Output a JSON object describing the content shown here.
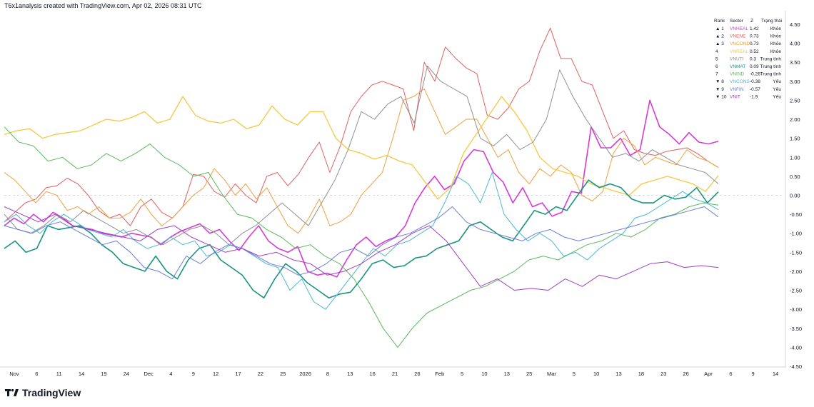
{
  "header": {
    "text": "T6x1analysis created with TradingView.com, Apr 02, 2026 08:31 UTC"
  },
  "brand": {
    "name": "TradingView"
  },
  "chart_data": {
    "type": "line",
    "ylim": [
      -4.5,
      4.8
    ],
    "y_ticks": [
      "4.50",
      "4.00",
      "3.50",
      "3.00",
      "2.50",
      "2.00",
      "1.50",
      "1.00",
      "0.50",
      "0.00",
      "-0.50",
      "-1.00",
      "-1.50",
      "-2.00",
      "-2.50",
      "-3.00",
      "-3.50",
      "-4.00",
      "-4.50"
    ],
    "x_ticks": [
      "Nov",
      "6",
      "11",
      "14",
      "19",
      "24",
      "Dec",
      "4",
      "9",
      "12",
      "17",
      "22",
      "25",
      "2026",
      "8",
      "13",
      "16",
      "21",
      "26",
      "Feb",
      "5",
      "10",
      "13",
      "25",
      "Mar",
      "5",
      "10",
      "13",
      "18",
      "23",
      "26",
      "Apr",
      "6",
      "9",
      "14"
    ],
    "legend": {
      "headers": [
        "Rank",
        "Sector",
        "Z",
        "Trạng thái"
      ],
      "rows": [
        {
          "rank": "▲ 1",
          "sector": "VNHEAL",
          "z": "1.42",
          "status": "Khỏe",
          "color": "#d63bd6"
        },
        {
          "rank": "▲ 2",
          "sector": "VNENE",
          "z": "0.73",
          "status": "Khỏe",
          "color": "#e06060"
        },
        {
          "rank": "▲ 3",
          "sector": "VNCOND",
          "z": "0.73",
          "status": "Khỏe",
          "color": "#f0a040"
        },
        {
          "rank": "4",
          "sector": "VNREAL",
          "z": "0.52",
          "status": "Khỏe",
          "color": "#f5c842"
        },
        {
          "rank": "5",
          "sector": "VNUTI",
          "z": "0.3",
          "status": "Trung tính",
          "color": "#909090"
        },
        {
          "rank": "6",
          "sector": "VNMAT",
          "z": "0.09",
          "status": "Trung tính",
          "color": "#1a9480"
        },
        {
          "rank": "7",
          "sector": "VNIND",
          "z": "-0.26",
          "status": "Trung tính",
          "color": "#5cb85c"
        },
        {
          "rank": "▼ 8",
          "sector": "VNCONS",
          "z": "-0.38",
          "status": "Yếu",
          "color": "#4cb8d6"
        },
        {
          "rank": "▼ 9",
          "sector": "VNFIN",
          "z": "-0.57",
          "status": "Yếu",
          "color": "#6a7fd6"
        },
        {
          "rank": "▼ 10",
          "sector": "VNIT",
          "z": "-1.9",
          "status": "Yếu",
          "color": "#a040c0"
        }
      ]
    },
    "series": [
      {
        "name": "VNHEAL",
        "color": "#d63bd6",
        "width": 1.6,
        "values": [
          -0.8,
          -0.6,
          -0.75,
          -0.5,
          -0.7,
          -0.45,
          -0.6,
          -0.8,
          -0.85,
          -0.9,
          -1.0,
          -1.05,
          -1.1,
          -1.0,
          -1.05,
          -1.1,
          -1.3,
          -1.1,
          -0.95,
          -0.85,
          -0.75,
          -1.0,
          -0.9,
          -1.2,
          -1.45,
          -1.1,
          -0.8,
          -1.2,
          -1.4,
          -1.5,
          -1.35,
          -2.0,
          -2.1,
          -2.05,
          -2.15,
          -1.7,
          -1.3,
          -1.1,
          -1.35,
          -1.2,
          -1.1,
          -0.8,
          -0.2,
          0.2,
          0.5,
          0.15,
          0.3,
          0.9,
          1.2,
          1.15,
          0.6,
          0.35,
          -0.2,
          0.2,
          -0.3,
          -0.2,
          -0.55,
          -0.45,
          0.1,
          0.05,
          1.8,
          1.25,
          1.25,
          1.5,
          1.05,
          1.2,
          2.5,
          1.8,
          1.6,
          1.35,
          1.65,
          1.4,
          1.35,
          1.42
        ]
      },
      {
        "name": "VNENE",
        "color": "#e06060",
        "width": 1.0,
        "values": [
          -0.7,
          -0.45,
          -0.2,
          -0.1,
          0.2,
          0.25,
          0.45,
          0.3,
          0.0,
          -0.4,
          -0.6,
          -0.5,
          -0.8,
          -0.3,
          -0.1,
          -0.45,
          -0.6,
          -0.3,
          0.55,
          0.5,
          0.1,
          -0.05,
          0.3,
          0.0,
          -0.2,
          0.5,
          0.6,
          0.25,
          0.55,
          1.0,
          1.4,
          0.6,
          1.3,
          2.2,
          2.6,
          2.9,
          3.0,
          2.9,
          2.8,
          1.7,
          3.5,
          3.0,
          3.9,
          3.6,
          3.35,
          3.2,
          2.1,
          2.0,
          2.3,
          2.8,
          3.0,
          3.8,
          4.4,
          3.6,
          3.6,
          3.0,
          2.9,
          2.2,
          1.5,
          1.7,
          1.2,
          1.1,
          1.05,
          1.15,
          1.2,
          1.25,
          1.1,
          0.9,
          0.73
        ]
      },
      {
        "name": "VNCOND",
        "color": "#f0a040",
        "width": 1.0,
        "values": [
          0.6,
          0.4,
          0.1,
          -0.2,
          0.1,
          0.0,
          -0.4,
          -0.3,
          -0.5,
          -0.3,
          -0.6,
          -0.6,
          -0.45,
          -0.1,
          -0.5,
          -0.8,
          -0.6,
          -0.3,
          0.0,
          0.2,
          0.7,
          0.4,
          0.0,
          0.3,
          -0.1,
          0.2,
          -0.3,
          -0.8,
          -1.0,
          -0.6,
          -0.1,
          -0.8,
          -0.7,
          -0.5,
          0.0,
          0.3,
          0.6,
          1.5,
          2.5,
          2.6,
          2.8,
          2.2,
          1.6,
          1.8,
          2.0,
          2.0,
          1.5,
          1.0,
          1.2,
          0.6,
          0.3,
          0.7,
          0.5,
          0.8,
          0.6,
          0.0,
          -0.15,
          0.1,
          1.1,
          1.5,
          1.3,
          0.8,
          1.0,
          0.9,
          0.8,
          1.2,
          1.0,
          0.9,
          0.73
        ]
      },
      {
        "name": "VNREAL",
        "color": "#f5c842",
        "width": 1.3,
        "values": [
          1.6,
          1.7,
          1.75,
          1.5,
          1.6,
          1.65,
          1.7,
          1.85,
          2.0,
          1.95,
          2.05,
          2.2,
          1.9,
          2.0,
          2.6,
          2.1,
          1.95,
          1.9,
          2.0,
          1.75,
          1.85,
          2.35,
          2.0,
          1.85,
          2.2,
          2.2,
          1.5,
          1.2,
          1.1,
          0.95,
          1.05,
          0.9,
          0.8,
          0.35,
          -0.1,
          0.2,
          1.1,
          1.6,
          2.1,
          2.6,
          2.2,
          1.7,
          1.0,
          0.7,
          0.6,
          0.5,
          0.3,
          0.2,
          0.1,
          0.0,
          0.3,
          0.4,
          0.5,
          0.4,
          0.3,
          0.1,
          0.52
        ]
      },
      {
        "name": "VNUTI",
        "color": "#909090",
        "width": 1.0,
        "values": [
          -0.5,
          -0.9,
          -1.0,
          -0.8,
          -0.5,
          -0.7,
          -0.4,
          -0.6,
          -0.8,
          -1.0,
          -0.9,
          -1.1,
          -1.3,
          -1.1,
          -0.9,
          -0.8,
          -1.0,
          -1.3,
          -1.0,
          -0.8,
          -0.5,
          -0.2,
          -0.5,
          -0.8,
          -0.2,
          0.4,
          1.2,
          2.2,
          2.0,
          2.4,
          2.6,
          1.9,
          3.4,
          3.0,
          2.8,
          2.6,
          1.5,
          1.3,
          1.6,
          1.2,
          1.4,
          2.0,
          3.3,
          2.6,
          2.0,
          1.5,
          1.0,
          1.1,
          0.9,
          1.2,
          1.0,
          0.8,
          0.7,
          0.6,
          0.3
        ]
      },
      {
        "name": "VNMAT",
        "color": "#1a9480",
        "width": 1.6,
        "values": [
          -1.4,
          -1.2,
          -1.5,
          -1.4,
          -0.8,
          -0.9,
          -0.85,
          -0.8,
          -1.0,
          -1.3,
          -1.5,
          -1.8,
          -1.9,
          -2.0,
          -1.6,
          -2.0,
          -2.2,
          -1.7,
          -1.4,
          -1.3,
          -1.7,
          -1.9,
          -2.1,
          -2.5,
          -2.7,
          -2.2,
          -1.8,
          -2.0,
          -2.3,
          -2.5,
          -2.7,
          -2.6,
          -2.55,
          -2.2,
          -1.8,
          -1.7,
          -1.9,
          -1.85,
          -1.65,
          -1.6,
          -1.4,
          -1.3,
          -1.2,
          -0.8,
          -0.7,
          -0.9,
          -1.1,
          -1.2,
          -0.8,
          -0.4,
          -0.5,
          -0.3,
          -0.4,
          0.0,
          0.4,
          0.2,
          0.3,
          0.2,
          -0.1,
          -0.2,
          -0.2,
          0.0,
          -0.1,
          -0.05,
          0.2,
          -0.2,
          0.09
        ]
      },
      {
        "name": "VNIND",
        "color": "#5cb85c",
        "width": 1.0,
        "values": [
          1.8,
          1.4,
          1.3,
          0.9,
          1.0,
          0.7,
          0.8,
          1.1,
          0.9,
          1.1,
          1.35,
          1.0,
          0.8,
          0.5,
          0.6,
          0.0,
          -0.5,
          -0.6,
          -0.9,
          -1.1,
          -1.4,
          -1.3,
          -1.6,
          -1.8,
          -2.2,
          -2.8,
          -3.5,
          -4.0,
          -3.5,
          -3.1,
          -2.9,
          -2.7,
          -2.5,
          -2.4,
          -2.2,
          -2.0,
          -1.7,
          -1.6,
          -1.7,
          -1.5,
          -1.3,
          -1.2,
          -1.0,
          -1.1,
          -0.9,
          -0.6,
          -0.5,
          -0.3,
          -0.2,
          -0.26
        ]
      },
      {
        "name": "VNCONS",
        "color": "#4cb8d6",
        "width": 1.0,
        "values": [
          -0.7,
          -0.5,
          -0.8,
          -1.0,
          -0.7,
          -0.5,
          -0.7,
          -0.9,
          -1.0,
          -1.1,
          -0.9,
          -1.2,
          -1.4,
          -1.3,
          -1.1,
          -1.3,
          -1.2,
          -1.6,
          -1.5,
          -1.3,
          -1.4,
          -1.6,
          -1.8,
          -1.9,
          -2.5,
          -2.2,
          -2.8,
          -3.0,
          -2.6,
          -2.2,
          -1.8,
          -1.4,
          -1.6,
          -1.3,
          -1.2,
          -1.0,
          -0.8,
          -0.2,
          0.5,
          0.3,
          -0.2,
          0.6,
          -0.5,
          -0.9,
          -1.2,
          -1.0,
          -1.2,
          -1.6,
          -1.5,
          -1.7,
          -1.4,
          -1.2,
          -1.0,
          -0.6,
          -0.5,
          -0.3,
          -0.1,
          0.1,
          -0.1,
          -0.2,
          -0.38
        ]
      },
      {
        "name": "VNFIN",
        "color": "#6a7fd6",
        "width": 1.0,
        "values": [
          -0.8,
          -0.9,
          -1.0,
          -0.8,
          -0.7,
          -0.9,
          -1.1,
          -1.3,
          -1.2,
          -1.5,
          -1.9,
          -2.0,
          -2.2,
          -1.6,
          -1.8,
          -1.5,
          -1.3,
          -1.4,
          -1.6,
          -1.8,
          -1.9,
          -2.1,
          -2.0,
          -1.8,
          -1.5,
          -1.4,
          -1.6,
          -1.3,
          -1.1,
          -1.0,
          -0.8,
          -0.6,
          -0.3,
          -0.7,
          -0.9,
          -1.0,
          -1.1,
          -1.2,
          -1.0,
          -0.9,
          -1.1,
          -1.2,
          -1.1,
          -1.0,
          -0.9,
          -0.8,
          -0.7,
          -0.6,
          -0.5,
          -0.4,
          -0.3,
          -0.57
        ]
      },
      {
        "name": "VNIT",
        "color": "#a040c0",
        "width": 1.0,
        "values": [
          -0.3,
          -0.5,
          -0.7,
          -0.5,
          -0.8,
          -0.9,
          -1.0,
          -1.1,
          -1.2,
          -0.9,
          -0.8,
          -1.1,
          -1.3,
          -1.5,
          -1.4,
          -1.6,
          -1.5,
          -1.7,
          -1.8,
          -2.1,
          -2.0,
          -1.8,
          -1.5,
          -1.3,
          -1.0,
          -0.8,
          -1.2,
          -1.8,
          -2.4,
          -2.2,
          -2.5,
          -2.45,
          -2.5,
          -2.2,
          -2.4,
          -2.1,
          -2.2,
          -2.0,
          -1.8,
          -1.75,
          -1.9,
          -1.85,
          -1.9
        ]
      }
    ]
  }
}
